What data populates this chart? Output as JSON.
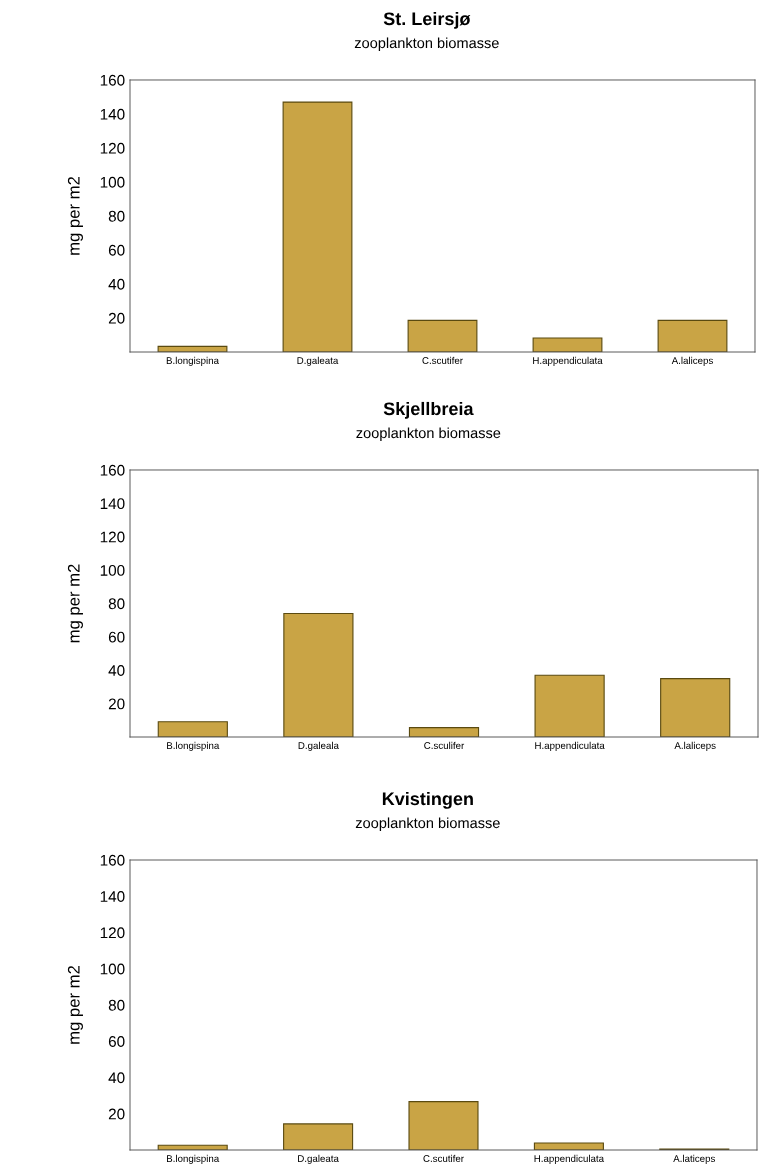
{
  "chart_data": [
    {
      "type": "bar",
      "title": "St. Leirsjø",
      "subtitle": "zooplankton biomasse",
      "ylabel": "mg per m2",
      "categories": [
        "B.longispina",
        "D.galeata",
        "C.scutifer",
        "H.appendiculata",
        "A.laliceps"
      ],
      "values": [
        3.3,
        147,
        18.6,
        8.2,
        18.6
      ],
      "color": "#c9a445",
      "ylim": [
        0,
        160
      ],
      "yticks": [
        20,
        40,
        60,
        80,
        100,
        120,
        140,
        160
      ]
    },
    {
      "type": "bar",
      "title": "Skjellbreia",
      "subtitle": "zooplankton biomasse",
      "ylabel": "mg per m2",
      "categories": [
        "B.longispina",
        "D.galeala",
        "C.sculifer",
        "H.appendiculata",
        "A.laliceps"
      ],
      "values": [
        9.1,
        74,
        5.6,
        37,
        35
      ],
      "color": "#c9a445",
      "ylim": [
        0,
        160
      ],
      "yticks": [
        20,
        40,
        60,
        80,
        100,
        120,
        140,
        160
      ]
    },
    {
      "type": "bar",
      "title": "Kvistingen",
      "subtitle": "zooplankton biomasse",
      "ylabel": "mg per m2",
      "categories": [
        "B.longispina",
        "D.galeata",
        "C.scutifer",
        "H.appendiculata",
        "A.laticeps"
      ],
      "values": [
        2.6,
        14.4,
        26.7,
        3.9,
        0.5
      ],
      "color": "#c9a445",
      "ylim": [
        0,
        160
      ],
      "yticks": [
        20,
        40,
        60,
        80,
        100,
        120,
        140,
        160
      ]
    }
  ]
}
